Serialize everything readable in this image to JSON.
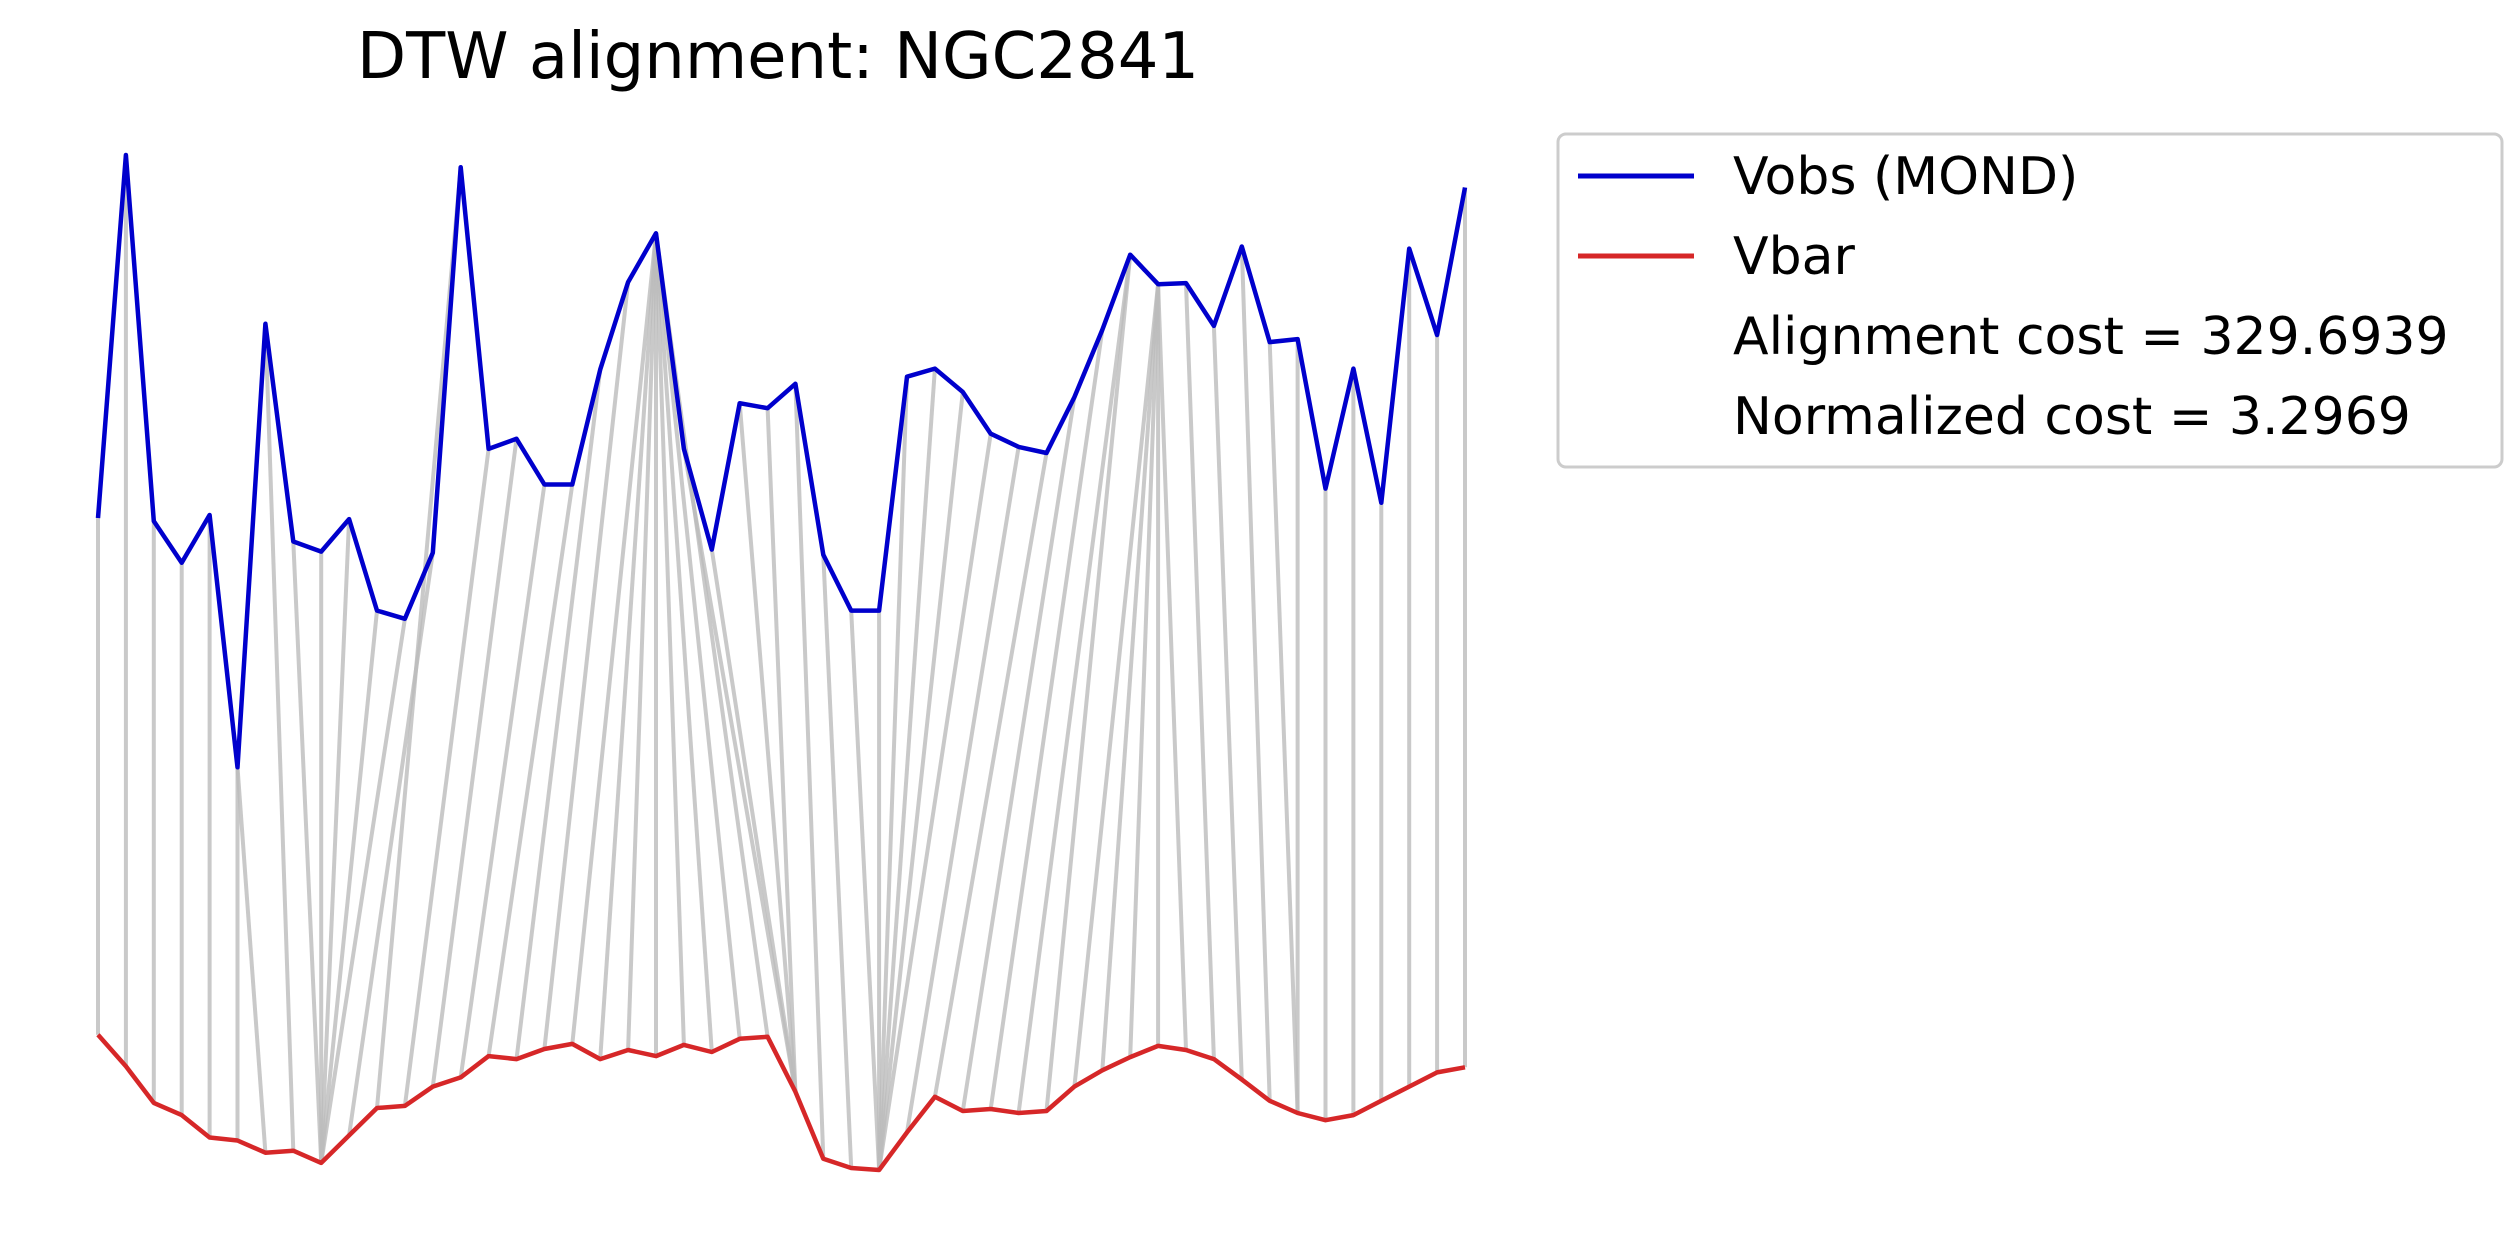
{
  "chart_data": {
    "type": "line",
    "title": "DTW alignment: NGC2841",
    "xlabel": "",
    "ylabel": "",
    "axes_visible": false,
    "grid": false,
    "legend_position": "upper-right-outside",
    "colors": {
      "obs": "#0000cc",
      "bar": "#d62728",
      "alignment": "#bbbbbb"
    },
    "series": [
      {
        "name": "Vobs (MOND)",
        "role": "obs",
        "values": [
          0.614,
          0.971,
          0.611,
          0.57,
          0.617,
          0.369,
          0.805,
          0.591,
          0.581,
          0.613,
          0.523,
          0.515,
          0.58,
          0.959,
          0.682,
          0.692,
          0.647,
          0.647,
          0.76,
          0.846,
          0.894,
          0.682,
          0.583,
          0.727,
          0.722,
          0.746,
          0.578,
          0.523,
          0.523,
          0.753,
          0.761,
          0.738,
          0.697,
          0.684,
          0.678,
          0.733,
          0.799,
          0.873,
          0.844,
          0.845,
          0.803,
          0.881,
          0.787,
          0.79,
          0.643,
          0.761,
          0.629,
          0.879,
          0.794,
          0.939
        ]
      },
      {
        "name": "Vbar",
        "role": "bar",
        "values": [
          0.106,
          0.075,
          0.039,
          0.027,
          0.005,
          0.002,
          -0.01,
          -0.008,
          -0.02,
          0.007,
          0.034,
          0.036,
          0.055,
          0.064,
          0.085,
          0.082,
          0.092,
          0.097,
          0.082,
          0.091,
          0.085,
          0.096,
          0.089,
          0.102,
          0.104,
          0.05,
          -0.016,
          -0.025,
          -0.027,
          0.01,
          0.045,
          0.031,
          0.033,
          0.029,
          0.031,
          0.055,
          0.071,
          0.084,
          0.095,
          0.091,
          0.082,
          0.062,
          0.041,
          0.029,
          0.022,
          0.027,
          0.041,
          0.055,
          0.069,
          0.074
        ]
      }
    ],
    "alignment_path": [
      [
        0,
        0
      ],
      [
        1,
        1
      ],
      [
        2,
        2
      ],
      [
        3,
        3
      ],
      [
        4,
        4
      ],
      [
        5,
        5
      ],
      [
        5,
        6
      ],
      [
        6,
        7
      ],
      [
        7,
        8
      ],
      [
        8,
        8
      ],
      [
        9,
        8
      ],
      [
        10,
        8
      ],
      [
        11,
        8
      ],
      [
        12,
        9
      ],
      [
        13,
        10
      ],
      [
        14,
        11
      ],
      [
        15,
        12
      ],
      [
        16,
        13
      ],
      [
        17,
        14
      ],
      [
        18,
        15
      ],
      [
        19,
        16
      ],
      [
        20,
        17
      ],
      [
        20,
        18
      ],
      [
        20,
        19
      ],
      [
        20,
        20
      ],
      [
        20,
        21
      ],
      [
        20,
        22
      ],
      [
        20,
        23
      ],
      [
        20,
        24
      ],
      [
        21,
        25
      ],
      [
        22,
        25
      ],
      [
        23,
        25
      ],
      [
        24,
        25
      ],
      [
        25,
        26
      ],
      [
        26,
        27
      ],
      [
        27,
        28
      ],
      [
        28,
        28
      ],
      [
        29,
        28
      ],
      [
        30,
        28
      ],
      [
        31,
        28
      ],
      [
        32,
        28
      ],
      [
        33,
        29
      ],
      [
        34,
        30
      ],
      [
        35,
        31
      ],
      [
        36,
        32
      ],
      [
        37,
        33
      ],
      [
        37,
        34
      ],
      [
        38,
        35
      ],
      [
        38,
        36
      ],
      [
        38,
        37
      ],
      [
        38,
        38
      ],
      [
        38,
        39
      ],
      [
        39,
        40
      ],
      [
        40,
        41
      ],
      [
        41,
        42
      ],
      [
        42,
        43
      ],
      [
        43,
        43
      ],
      [
        44,
        44
      ],
      [
        45,
        45
      ],
      [
        46,
        46
      ],
      [
        47,
        47
      ],
      [
        48,
        48
      ],
      [
        49,
        49
      ]
    ],
    "legend": [
      {
        "label": "Vobs (MOND)",
        "swatch": "obs"
      },
      {
        "label": "Vbar",
        "swatch": "bar"
      },
      {
        "label": "Alignment cost = 329.6939",
        "swatch": ""
      },
      {
        "label": "Normalized cost = 3.2969",
        "swatch": ""
      }
    ]
  }
}
